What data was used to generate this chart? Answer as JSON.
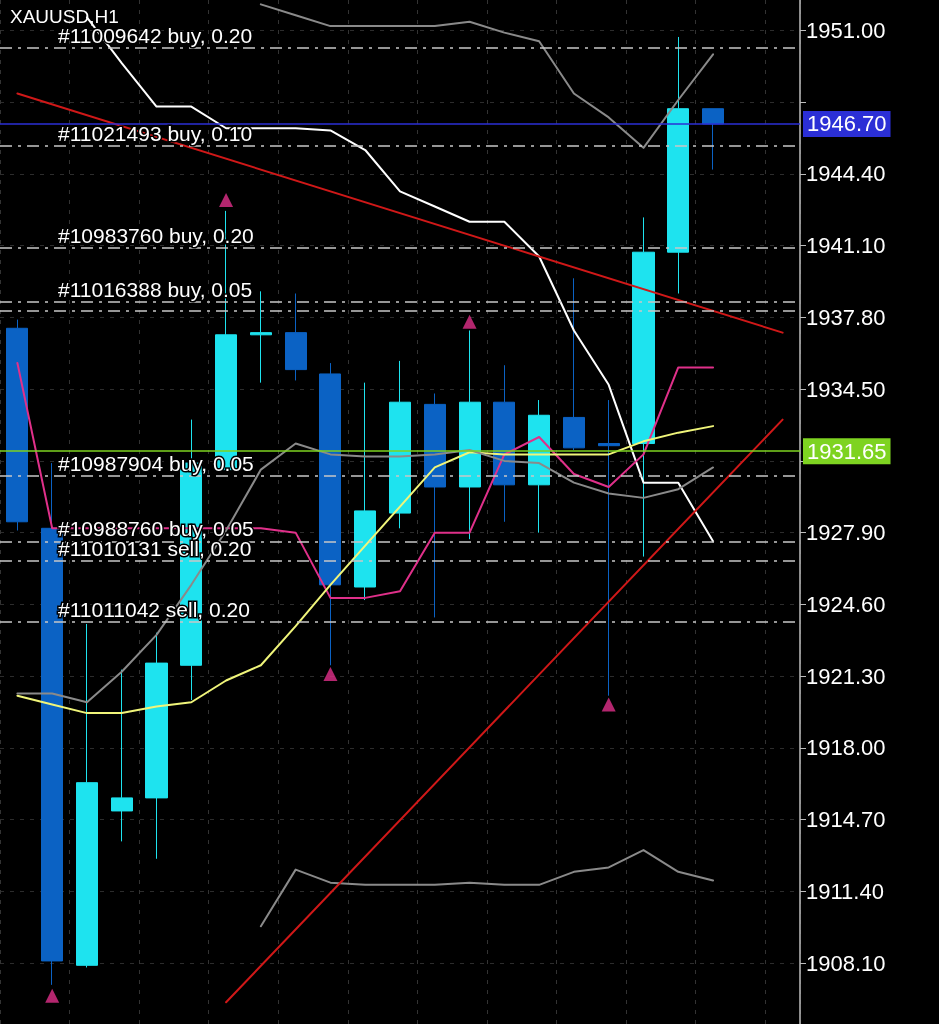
{
  "chart_data": {
    "type": "candlestick",
    "title": "XAUUSD,H1",
    "categories": [
      null,
      null,
      null,
      null,
      null,
      null,
      null,
      null,
      null,
      null,
      null,
      null,
      null,
      null,
      null,
      null,
      null,
      null,
      null,
      null,
      null,
      null,
      null
    ],
    "series": [
      {
        "ohlc": [
          [
            1937.3,
            1937.7,
            1928.0,
            1928.4
          ],
          [
            1928.1,
            1931.1,
            1907.1,
            1908.2
          ],
          [
            1908.0,
            1923.7,
            1907.9,
            1916.4
          ],
          [
            1915.1,
            1921.6,
            1913.7,
            1915.7
          ],
          [
            1915.7,
            1923.3,
            1912.9,
            1921.9
          ],
          [
            1921.8,
            1933.1,
            1920.2,
            1931.1
          ],
          [
            1930.8,
            1942.7,
            1930.8,
            1937.0
          ],
          [
            1937.0,
            1939.0,
            1934.8,
            1937.1
          ],
          [
            1937.1,
            1938.9,
            1934.9,
            1935.4
          ],
          [
            1935.2,
            1935.7,
            1921.8,
            1925.5
          ],
          [
            1925.4,
            1934.8,
            1924.8,
            1928.9
          ],
          [
            1928.8,
            1935.8,
            1928.1,
            1933.9
          ],
          [
            1933.8,
            1934.3,
            1924.0,
            1930.0
          ],
          [
            1930.0,
            1937.2,
            1927.6,
            1933.9
          ],
          [
            1933.9,
            1935.6,
            1928.4,
            1930.1
          ],
          [
            1930.1,
            1934.0,
            1927.9,
            1933.3
          ],
          [
            1933.2,
            1939.6,
            1931.7,
            1931.8
          ],
          [
            1932.0,
            1934.0,
            1920.4,
            1931.9
          ],
          [
            1932.0,
            1942.4,
            1926.8,
            1940.8
          ],
          [
            1940.8,
            1950.7,
            1938.9,
            1947.4
          ],
          [
            1947.4,
            1947.4,
            1944.6,
            1946.7
          ],
          null,
          null
        ],
        "colors": [
          "#0b62c4",
          "#0b62c4",
          "#1ee3ef",
          "#1ee3ef",
          "#1ee3ef",
          "#1ee3ef",
          "#1ee3ef",
          "#1ee3ef",
          "#0b62c4",
          "#0b62c4",
          "#1ee3ef",
          "#1ee3ef",
          "#0b62c4",
          "#1ee3ef",
          "#0b62c4",
          "#1ee3ef",
          "#0b62c4",
          "#0b62c4",
          "#1ee3ef",
          "#1ee3ef",
          "#0b62c4",
          "#0b62c4",
          "#0b62c4"
        ]
      },
      {
        "type": "line",
        "color": "#ffffff",
        "marker": "none",
        "values": [
          null,
          null,
          1951.6,
          1949.5,
          1947.5,
          1947.5,
          1946.5,
          1946.5,
          1946.5,
          1946.4,
          1945.5,
          1943.6,
          1942.9,
          1942.2,
          1942.2,
          1940.6,
          1937.2,
          1934.7,
          1930.2,
          1930.2,
          1927.5,
          null,
          null
        ]
      },
      {
        "type": "line",
        "color": "#e0308a",
        "marker": "none",
        "values": [
          1935.7,
          1928.1,
          1928.1,
          1928.1,
          1928.1,
          1928.1,
          1928.1,
          1928.1,
          1927.9,
          1924.9,
          1924.9,
          1925.2,
          1927.9,
          1927.9,
          1931.5,
          1932.3,
          1930.6,
          1930.0,
          1931.5,
          1935.5,
          1935.5,
          null,
          null
        ]
      },
      {
        "type": "line",
        "color": "#f0f57a",
        "marker": "none",
        "values": [
          1920.4,
          1920.0,
          1919.6,
          1919.6,
          1919.9,
          1920.1,
          1921.1,
          1921.8,
          1923.6,
          1925.5,
          1927.3,
          1929.1,
          1930.9,
          1931.6,
          1931.5,
          1931.5,
          1931.5,
          1931.5,
          1932.1,
          1932.5,
          1932.8,
          null,
          null
        ]
      },
      {
        "type": "line",
        "color": "#8a8a8a",
        "marker": "none",
        "values": [
          1920.5,
          1920.5,
          1920.1,
          1921.5,
          1923.2,
          1925.5,
          1928.0,
          1930.8,
          1932.0,
          1931.5,
          1931.4,
          1931.4,
          1931.5,
          1931.7,
          1931.2,
          1931.1,
          1930.2,
          1929.7,
          1929.5,
          1929.9,
          1930.9,
          null,
          null
        ]
      },
      {
        "type": "line",
        "color": "#8a8a8a",
        "marker": "none",
        "values": [
          null,
          null,
          null,
          null,
          null,
          null,
          null,
          1952.2,
          1951.7,
          1951.2,
          1951.2,
          1951.2,
          1951.2,
          1951.4,
          1950.9,
          1950.5,
          1948.1,
          1947.0,
          1945.6,
          1947.8,
          1949.9,
          null,
          null
        ]
      },
      {
        "type": "line",
        "color": "#8a8a8a",
        "marker": "none",
        "values": [
          null,
          null,
          null,
          null,
          null,
          null,
          null,
          1909.8,
          1912.4,
          1911.8,
          1911.7,
          1911.7,
          1911.7,
          1911.8,
          1911.7,
          1911.7,
          1912.3,
          1912.5,
          1913.3,
          1912.3,
          1911.9,
          null,
          null
        ]
      },
      {
        "type": "line",
        "color": "#d01818",
        "marker": "none",
        "values": [
          1948.1,
          null,
          null,
          null,
          null,
          null,
          null,
          null,
          null,
          null,
          null,
          null,
          null,
          null,
          null,
          null,
          null,
          null,
          null,
          null,
          null,
          null,
          1937.1
        ]
      },
      {
        "type": "line",
        "color": "#d01818",
        "marker": "none",
        "values": [
          null,
          null,
          null,
          null,
          null,
          null,
          1906.3,
          null,
          null,
          null,
          null,
          null,
          null,
          null,
          null,
          null,
          null,
          null,
          null,
          null,
          null,
          null,
          1933.1
        ]
      },
      {
        "type": "scatter",
        "color": "#e0308a",
        "marker": "triangle",
        "values": [
          null,
          1906.6,
          null,
          null,
          null,
          null,
          1943.2,
          null,
          null,
          1921.4,
          null,
          null,
          null,
          1937.6,
          null,
          null,
          null,
          1920.0,
          null,
          null,
          null,
          null,
          null
        ]
      }
    ],
    "ylim": [
      1905.3,
      1952.4
    ],
    "yticks": [
      {
        "value": 1908.1,
        "label": "1908.10"
      },
      {
        "value": 1911.4,
        "label": "1911.40"
      },
      {
        "value": 1914.7,
        "label": "1914.70"
      },
      {
        "value": 1918.0,
        "label": "1918.00"
      },
      {
        "value": 1921.3,
        "label": "1921.30"
      },
      {
        "value": 1924.6,
        "label": "1924.60"
      },
      {
        "value": 1927.9,
        "label": "1927.90"
      },
      {
        "value": 1931.2,
        "label": null
      },
      {
        "value": 1934.5,
        "label": "1934.50"
      },
      {
        "value": 1937.8,
        "label": "1937.80"
      },
      {
        "value": 1941.1,
        "label": "1941.10"
      },
      {
        "value": 1944.4,
        "label": "1944.40"
      },
      {
        "value": 1947.7,
        "label": null
      },
      {
        "value": 1951.0,
        "label": "1951.00"
      }
    ],
    "ref_lines": [
      {
        "axis": "y",
        "value": 1950.2,
        "label": "#11009642 buy, 0.20",
        "color": "#c8c8c8",
        "line_style": "dashed"
      },
      {
        "axis": "y",
        "value": 1945.7,
        "label": "#11021493 buy, 0.10",
        "color": "#c8c8c8",
        "line_style": "dashed"
      },
      {
        "axis": "y",
        "value": 1941.0,
        "label": "#10983760 buy, 0.20",
        "color": "#c8c8c8",
        "line_style": "dashed"
      },
      {
        "axis": "y",
        "value": 1938.5,
        "label": "#11016388 buy, 0.05",
        "color": "#c8c8c8",
        "line_style": "dashed"
      },
      {
        "axis": "y",
        "value": 1938.1,
        "label": null,
        "color": "#c8c8c8",
        "line_style": "dashed"
      },
      {
        "axis": "y",
        "value": 1930.5,
        "label": "#10987904 buy, 0.05",
        "color": "#c8c8c8",
        "line_style": "dashed"
      },
      {
        "axis": "y",
        "value": 1927.5,
        "label": "#10988760 buy, 0.05",
        "color": "#c8c8c8",
        "line_style": "dashed"
      },
      {
        "axis": "y",
        "value": 1926.6,
        "label": "#11010131 sell, 0.20",
        "color": "#c8c8c8",
        "line_style": "dashed"
      },
      {
        "axis": "y",
        "value": 1923.8,
        "label": "#11011042 sell, 0.20",
        "color": "#c8c8c8",
        "line_style": "dashed"
      },
      {
        "axis": "y",
        "value": 1946.7,
        "label": "1946.70",
        "color": "#2b2fd6",
        "line_style": "solid"
      },
      {
        "axis": "y",
        "value": 1931.65,
        "label": "1931.65",
        "color": "#7ed321",
        "line_style": "solid"
      }
    ],
    "grid": true,
    "tick_labels": "y"
  }
}
